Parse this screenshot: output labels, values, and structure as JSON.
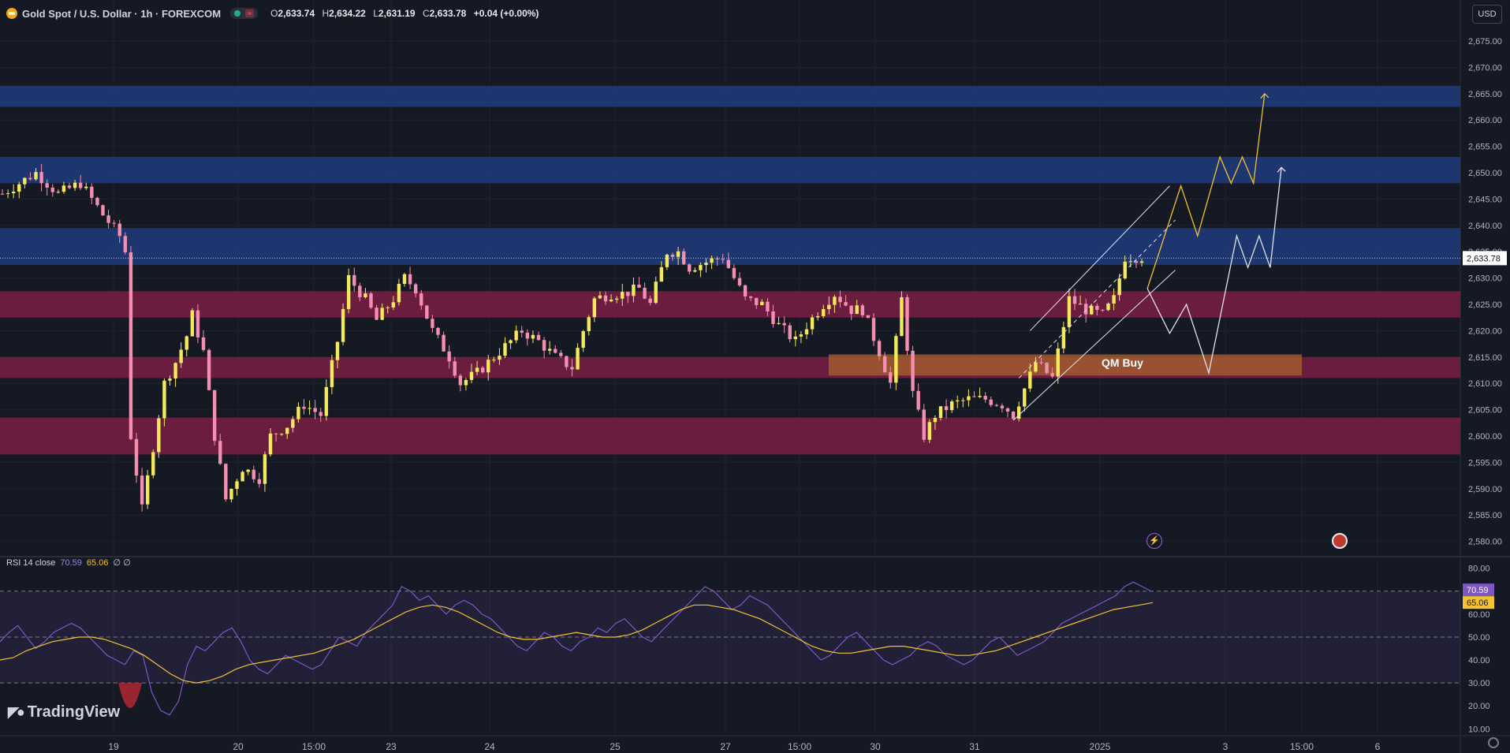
{
  "header": {
    "symbol_title": "Gold Spot / U.S. Dollar · 1h · FOREXCOM",
    "ohlc": {
      "o_label": "O",
      "o": "2,633.74",
      "h_label": "H",
      "h": "2,634.22",
      "l_label": "L",
      "l": "2,631.19",
      "c_label": "C",
      "c": "2,633.78",
      "change": "+0.04 (+0.00%)"
    },
    "currency": "USD"
  },
  "colors": {
    "background": "#151924",
    "bull_candle": "#f4e95a",
    "bear_candle": "#f48fb1",
    "blue_zone": "#1e3a78",
    "red_zone": "#7a1f45",
    "qm_zone": "#a8632e",
    "rsi_line": "#7e57c2",
    "rsi_ma": "#f2c230",
    "projection_yellow": "#f2c230",
    "projection_white": "#e0e3eb"
  },
  "icons": [
    "lightning-event-icon",
    "us-flag-event-icon",
    "settings-gear-icon",
    "tradingview-logo-icon"
  ],
  "annotations": {
    "qm_label": "QM Buy"
  },
  "rsi_legend": {
    "name": "RSI 14 close",
    "rsi_value": "70.59",
    "ma_value": "65.06",
    "extra": "∅ ∅"
  },
  "branding": "TradingView",
  "price_axis": {
    "last_price_label": "2,633.78",
    "rsi_label": "70.59",
    "ma_label": "65.06"
  },
  "time_axis": [
    "19",
    "20",
    "15:00",
    "23",
    "24",
    "25",
    "27",
    "15:00",
    "30",
    "31",
    "2025",
    "3",
    "15:00",
    "6"
  ],
  "chart_data": [
    {
      "type": "candlestick",
      "title": "Gold Spot / U.S. Dollar · 1h · FOREXCOM",
      "timeframe": "1h",
      "x_tick_labels": [
        "19",
        "20",
        "15:00",
        "23",
        "24",
        "25",
        "27",
        "15:00",
        "30",
        "31",
        "2025",
        "3",
        "15:00",
        "6"
      ],
      "y_tick_labels": [
        "2,675.00",
        "2,670.00",
        "2,665.00",
        "2,660.00",
        "2,655.00",
        "2,650.00",
        "2,645.00",
        "2,640.00",
        "2,635.00",
        "2,630.00",
        "2,625.00",
        "2,620.00",
        "2,615.00",
        "2,610.00",
        "2,605.00",
        "2,600.00",
        "2,595.00",
        "2,590.00",
        "2,585.00",
        "2,580.00"
      ],
      "ylim": [
        2578,
        2678
      ],
      "last_price": 2633.78,
      "close_path": [
        [
          0,
          2646
        ],
        [
          6,
          2650
        ],
        [
          10,
          2646
        ],
        [
          14,
          2648
        ],
        [
          18,
          2642
        ],
        [
          21,
          2638
        ],
        [
          22,
          2635
        ],
        [
          23,
          2600
        ],
        [
          25,
          2586
        ],
        [
          27,
          2598
        ],
        [
          29,
          2610
        ],
        [
          31,
          2614
        ],
        [
          33,
          2619
        ],
        [
          34,
          2623
        ],
        [
          36,
          2616
        ],
        [
          38,
          2600
        ],
        [
          40,
          2588
        ],
        [
          43,
          2594
        ],
        [
          46,
          2592
        ],
        [
          48,
          2600
        ],
        [
          51,
          2602
        ],
        [
          54,
          2606
        ],
        [
          57,
          2604
        ],
        [
          60,
          2618
        ],
        [
          62,
          2630
        ],
        [
          65,
          2626
        ],
        [
          67,
          2622
        ],
        [
          70,
          2626
        ],
        [
          72,
          2630
        ],
        [
          74,
          2628
        ],
        [
          77,
          2620
        ],
        [
          80,
          2615
        ],
        [
          82,
          2610
        ],
        [
          85,
          2612
        ],
        [
          87,
          2614
        ],
        [
          90,
          2617
        ],
        [
          93,
          2620
        ],
        [
          96,
          2618
        ],
        [
          99,
          2615
        ],
        [
          102,
          2613
        ],
        [
          104,
          2620
        ],
        [
          106,
          2626
        ],
        [
          109,
          2627
        ],
        [
          111,
          2627
        ],
        [
          114,
          2628
        ],
        [
          116,
          2625
        ],
        [
          119,
          2635
        ],
        [
          121,
          2635
        ],
        [
          123,
          2632
        ],
        [
          126,
          2633
        ],
        [
          129,
          2634
        ],
        [
          131,
          2630
        ],
        [
          133,
          2626
        ],
        [
          136,
          2625
        ],
        [
          139,
          2621
        ],
        [
          142,
          2618
        ],
        [
          144,
          2621
        ],
        [
          147,
          2625
        ],
        [
          149,
          2627
        ],
        [
          152,
          2624
        ],
        [
          154,
          2624
        ],
        [
          157,
          2616
        ],
        [
          159,
          2610
        ],
        [
          161,
          2626
        ],
        [
          163,
          2608
        ],
        [
          165,
          2600
        ],
        [
          167,
          2604
        ],
        [
          170,
          2606
        ],
        [
          173,
          2607
        ],
        [
          176,
          2607
        ],
        [
          179,
          2606
        ],
        [
          181,
          2604
        ],
        [
          183,
          2609
        ],
        [
          185,
          2614
        ],
        [
          188,
          2611
        ],
        [
          191,
          2626
        ],
        [
          194,
          2624
        ],
        [
          197,
          2623
        ],
        [
          199,
          2626
        ],
        [
          201,
          2634
        ],
        [
          204,
          2634
        ]
      ],
      "zones": [
        {
          "kind": "resistance",
          "color": "blue",
          "top": 2666.5,
          "bottom": 2662.5
        },
        {
          "kind": "resistance",
          "color": "blue",
          "top": 2653,
          "bottom": 2648
        },
        {
          "kind": "resistance",
          "color": "blue",
          "top": 2639.5,
          "bottom": 2632.5
        },
        {
          "kind": "support",
          "color": "red",
          "top": 2627.5,
          "bottom": 2622.5
        },
        {
          "kind": "support",
          "color": "red",
          "top": 2615,
          "bottom": 2611
        },
        {
          "kind": "support",
          "color": "red",
          "top": 2603.5,
          "bottom": 2596.5
        },
        {
          "kind": "qm",
          "label": "QM Buy",
          "top": 2615.5,
          "bottom": 2611.5
        }
      ],
      "projection_yellow": [
        [
          205,
          2628
        ],
        [
          211,
          2647.5
        ],
        [
          214,
          2638
        ],
        [
          218,
          2653
        ],
        [
          220,
          2648
        ],
        [
          222,
          2653
        ],
        [
          224,
          2648
        ],
        [
          226,
          2665
        ]
      ],
      "projection_white": [
        [
          205,
          2628
        ],
        [
          209,
          2619.5
        ],
        [
          212,
          2625
        ],
        [
          216,
          2612
        ],
        [
          221,
          2638
        ],
        [
          223,
          2632
        ],
        [
          225,
          2638
        ],
        [
          227,
          2632
        ],
        [
          229,
          2651
        ]
      ]
    },
    {
      "type": "line",
      "title": "RSI 14 close",
      "y_tick_labels": [
        "80.00",
        "70.00",
        "60.00",
        "50.00",
        "40.00",
        "30.00",
        "20.00",
        "10.00"
      ],
      "ylim": [
        7,
        83
      ],
      "levels": [
        70,
        50,
        30
      ],
      "series": [
        {
          "name": "RSI",
          "values": [
            48,
            52,
            55,
            50,
            45,
            48,
            52,
            54,
            56,
            54,
            50,
            46,
            42,
            40,
            38,
            44,
            42,
            26,
            18,
            16,
            22,
            38,
            46,
            44,
            48,
            52,
            54,
            48,
            40,
            36,
            34,
            38,
            42,
            40,
            38,
            36,
            38,
            44,
            50,
            48,
            46,
            52,
            56,
            60,
            64,
            72,
            70,
            66,
            68,
            64,
            60,
            64,
            66,
            64,
            60,
            58,
            54,
            50,
            46,
            44,
            48,
            52,
            50,
            46,
            44,
            48,
            50,
            54,
            52,
            56,
            58,
            54,
            50,
            48,
            52,
            56,
            60,
            64,
            68,
            72,
            70,
            66,
            62,
            64,
            68,
            66,
            64,
            60,
            56,
            52,
            48,
            44,
            40,
            42,
            46,
            50,
            52,
            48,
            44,
            40,
            38,
            40,
            42,
            46,
            48,
            46,
            42,
            40,
            38,
            40,
            44,
            48,
            50,
            46,
            42,
            44,
            46,
            48,
            52,
            56,
            58,
            60,
            62,
            64,
            66,
            68,
            72,
            74,
            72,
            70
          ]
        },
        {
          "name": "MA",
          "values": [
            40,
            41,
            44,
            46,
            48,
            49,
            50,
            50,
            49,
            47,
            45,
            42,
            38,
            34,
            31,
            30,
            31,
            33,
            36,
            38,
            39,
            40,
            41,
            42,
            43,
            45,
            47,
            49,
            52,
            55,
            58,
            61,
            63,
            64,
            63,
            61,
            58,
            55,
            52,
            50,
            49,
            49,
            50,
            51,
            52,
            51,
            50,
            50,
            51,
            53,
            56,
            59,
            62,
            64,
            64,
            63,
            62,
            60,
            58,
            55,
            52,
            49,
            46,
            44,
            43,
            43,
            44,
            45,
            46,
            46,
            45,
            44,
            43,
            42,
            42,
            43,
            44,
            46,
            48,
            50,
            52,
            54,
            56,
            58,
            60,
            62,
            63,
            64,
            65
          ]
        }
      ]
    }
  ]
}
